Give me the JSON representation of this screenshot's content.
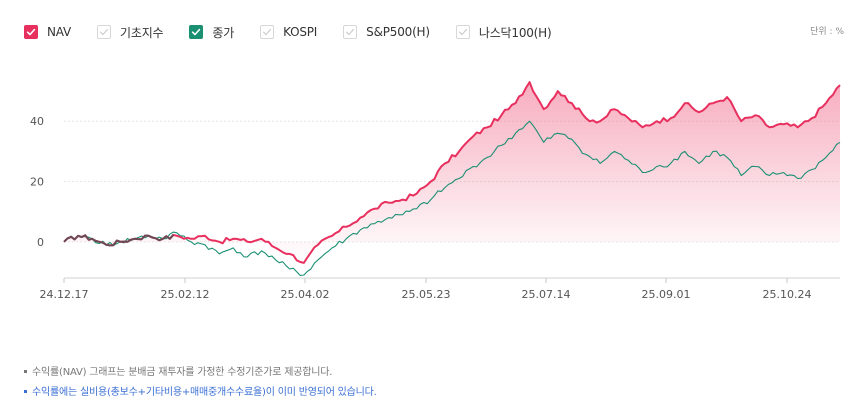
{
  "legend": [
    {
      "label": "NAV",
      "checked": true,
      "color": "#e8305f"
    },
    {
      "label": "기초지수",
      "checked": false,
      "color": "#cccccc"
    },
    {
      "label": "종가",
      "checked": true,
      "color": "#1a8f72"
    },
    {
      "label": "KOSPI",
      "checked": false,
      "color": "#cccccc"
    },
    {
      "label": "S&P500(H)",
      "checked": false,
      "color": "#cccccc"
    },
    {
      "label": "나스닥100(H)",
      "checked": false,
      "color": "#cccccc"
    }
  ],
  "unit_label": "단위 : %",
  "chart_data": {
    "type": "line",
    "x_tick_labels": [
      "24.12.17",
      "25.02.12",
      "25.04.02",
      "25.05.23",
      "25.07.14",
      "25.09.01",
      "25.10.24"
    ],
    "y_tick_labels": [
      "0",
      "20",
      "40"
    ],
    "ylim": [
      -12,
      57
    ],
    "grid": true,
    "fill_under_nav": true,
    "series": [
      {
        "name": "NAV",
        "color": "#e8305f",
        "x": [
          "24.12.17",
          "24.12.24",
          "24.12.31",
          "25.01.07",
          "25.01.14",
          "25.01.21",
          "25.01.28",
          "25.02.04",
          "25.02.12",
          "25.02.19",
          "25.02.26",
          "25.03.05",
          "25.03.12",
          "25.03.19",
          "25.03.26",
          "25.04.02",
          "25.04.04",
          "25.04.07",
          "25.04.09",
          "25.04.11",
          "25.04.16",
          "25.04.23",
          "25.04.30",
          "25.05.07",
          "25.05.14",
          "25.05.23",
          "25.05.30",
          "25.06.06",
          "25.06.13",
          "25.06.20",
          "25.06.27",
          "25.07.04",
          "25.07.09",
          "25.07.14",
          "25.07.18",
          "25.07.25",
          "25.08.01",
          "25.08.08",
          "25.08.15",
          "25.08.22",
          "25.09.01",
          "25.09.08",
          "25.09.15",
          "25.09.22",
          "25.09.29",
          "25.10.06",
          "25.10.13",
          "25.10.20",
          "25.10.24",
          "25.10.31",
          "25.11.07",
          "25.11.14",
          "25.11.21",
          "25.11.28",
          "25.12.05",
          "25.12.12"
        ],
        "values": [
          0,
          2,
          1,
          -1,
          0,
          1,
          2,
          1,
          2,
          1,
          2,
          0,
          1,
          0,
          1,
          -2,
          -4,
          -7,
          -1,
          2,
          5,
          8,
          11,
          13,
          14,
          16,
          20,
          26,
          30,
          35,
          38,
          42,
          46,
          53,
          44,
          50,
          46,
          41,
          40,
          44,
          41,
          38,
          40,
          41,
          46,
          43,
          46,
          48,
          40,
          42,
          38,
          39,
          38,
          41,
          46,
          52
        ]
      },
      {
        "name": "종가",
        "color": "#1a8f72",
        "x": [
          "24.12.17",
          "24.12.24",
          "24.12.31",
          "25.01.07",
          "25.01.14",
          "25.01.21",
          "25.01.28",
          "25.02.04",
          "25.02.12",
          "25.02.19",
          "25.02.26",
          "25.03.05",
          "25.03.12",
          "25.03.19",
          "25.03.26",
          "25.04.02",
          "25.04.04",
          "25.04.07",
          "25.04.09",
          "25.04.11",
          "25.04.16",
          "25.04.23",
          "25.04.30",
          "25.05.07",
          "25.05.14",
          "25.05.23",
          "25.05.30",
          "25.06.06",
          "25.06.13",
          "25.06.20",
          "25.06.27",
          "25.07.04",
          "25.07.09",
          "25.07.14",
          "25.07.18",
          "25.07.25",
          "25.08.01",
          "25.08.08",
          "25.08.15",
          "25.08.22",
          "25.09.01",
          "25.09.08",
          "25.09.15",
          "25.09.22",
          "25.09.29",
          "25.10.06",
          "25.10.13",
          "25.10.20",
          "25.10.24",
          "25.10.31",
          "25.11.07",
          "25.11.14",
          "25.11.21",
          "25.11.28",
          "25.12.05",
          "25.12.12"
        ],
        "values": [
          0,
          2,
          1,
          -1,
          0,
          1,
          2,
          1,
          3,
          0,
          -1,
          -4,
          -2,
          -5,
          -3,
          -6,
          -9,
          -11,
          -6,
          -2,
          1,
          4,
          6,
          8,
          9,
          11,
          14,
          18,
          21,
          25,
          28,
          32,
          36,
          40,
          33,
          36,
          34,
          29,
          26,
          30,
          27,
          23,
          25,
          26,
          30,
          26,
          30,
          28,
          22,
          25,
          22,
          23,
          21,
          24,
          28,
          33
        ]
      }
    ]
  },
  "footnotes": [
    {
      "text": "수익률(NAV) 그래프는 분배금 재투자를 가정한 수정기준가로 제공합니다.",
      "style": "gray"
    },
    {
      "text": "수익률에는 실비용(총보수+기타비용+매매중개수수료율)이 이미 반영되어 있습니다.",
      "style": "blue"
    }
  ]
}
